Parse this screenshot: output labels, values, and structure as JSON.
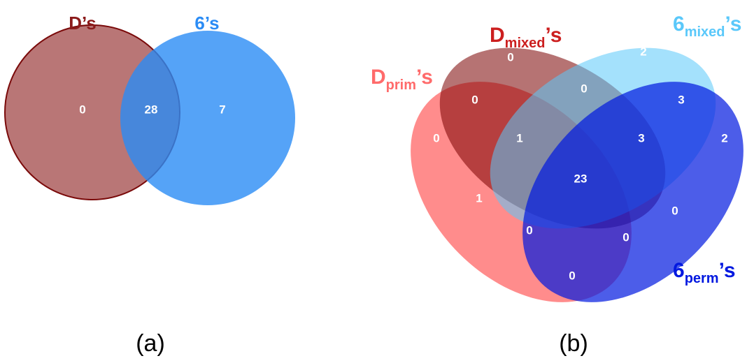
{
  "colors": {
    "d_set": "#8b1a1a",
    "six_set": "#2b8cf5",
    "d_mixed": "#7a0000",
    "six_mixed": "#5ac8fa",
    "d_prim": "#ff6b6b",
    "six_perm": "#0018e0"
  },
  "venn_a": {
    "panel_label": "(a)",
    "set_d_label": "D’s",
    "set_6_label": "6’s",
    "regions": {
      "d_only": "0",
      "both": "28",
      "six_only": "7"
    }
  },
  "venn_b": {
    "panel_label": "(b)",
    "sets": {
      "d_mixed": {
        "base": "D",
        "sub": "mixed",
        "suffix": "’s"
      },
      "six_mixed": {
        "base": "6",
        "sub": "mixed",
        "suffix": "’s"
      },
      "d_prim": {
        "base": "D",
        "sub": "prim",
        "suffix": "’s"
      },
      "six_perm": {
        "base": "6",
        "sub": "perm",
        "suffix": "’s"
      }
    },
    "regions": {
      "dmixed_only": "0",
      "sixmixed_only": "2",
      "dprim_dmixed": "0",
      "dmixed_sixmixed": "0",
      "sixmixed_sixperm": "3",
      "dprim_only": "0",
      "dprim_dmixed_sixmixed": "1",
      "dmixed_sixmixed_sixperm": "3",
      "sixperm_only": "2",
      "all_four": "23",
      "dprim_sixmixed": "1",
      "dmixed_sixperm": "0",
      "dprim_sixmixed_sixperm": "0",
      "dprim_dmixed_sixperm": "0",
      "dprim_sixperm": "0"
    }
  }
}
